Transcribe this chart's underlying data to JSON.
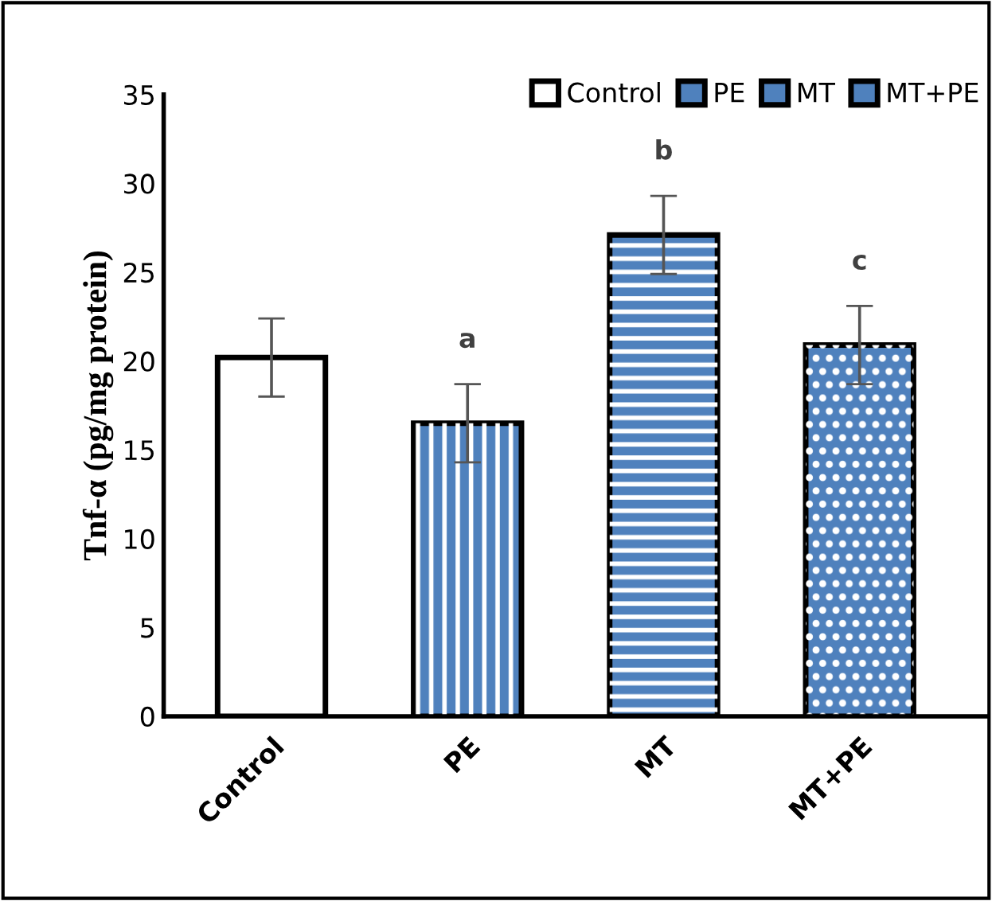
{
  "chart_data": {
    "type": "bar",
    "ylabel": "Tnf-α (pg/mg protein)",
    "categories": [
      "Control",
      "PE",
      "MT",
      "MT+PE"
    ],
    "series": [
      {
        "name": "Control",
        "color": "#ffffff",
        "values": [
          20.2,
          null,
          null,
          null
        ],
        "errors": [
          2.2,
          null,
          null,
          null
        ]
      },
      {
        "name": "PE",
        "color": "#4f81bd",
        "values": [
          null,
          16.5,
          null,
          null
        ],
        "errors": [
          null,
          2.2,
          null,
          null
        ]
      },
      {
        "name": "MT",
        "color": "#4f81bd",
        "values": [
          null,
          null,
          27.1,
          null
        ],
        "errors": [
          null,
          null,
          2.2,
          null
        ]
      },
      {
        "name": "MT+PE",
        "color": "#4f81bd",
        "values": [
          null,
          null,
          null,
          20.9
        ],
        "errors": [
          null,
          null,
          null,
          2.2
        ]
      }
    ],
    "ylim": [
      0,
      35
    ],
    "yticks": [
      0,
      5,
      10,
      15,
      20,
      25,
      30,
      35
    ],
    "annotations": [
      {
        "text": "a",
        "x": "PE",
        "y": 18.7
      },
      {
        "text": "b",
        "x": "MT",
        "y": 29.3
      },
      {
        "text": "c",
        "x": "MT+PE",
        "y": 23.1
      }
    ],
    "legend": "top right",
    "grid": false
  }
}
